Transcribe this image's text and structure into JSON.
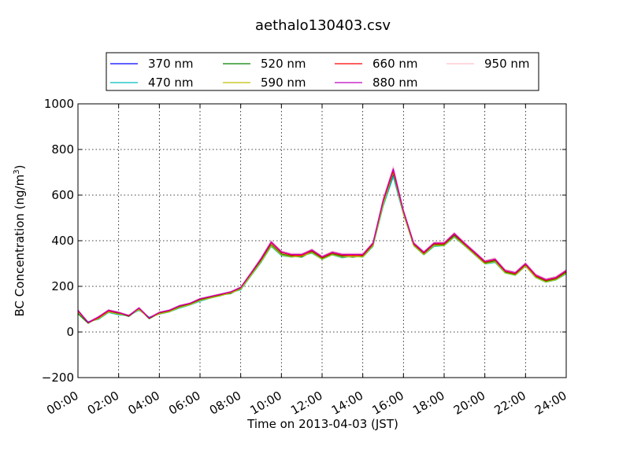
{
  "chart_data": {
    "type": "line",
    "title": "aethalo130403.csv",
    "xlabel": "Time on 2013-04-03 (JST)",
    "ylabel": "BC Concentration (ng/m",
    "ylabel_sup": "3",
    "ylabel_end": ")",
    "xlim": [
      0,
      24
    ],
    "ylim": [
      -200,
      1000
    ],
    "grid": true,
    "legend_position": "top",
    "x_ticks": [
      {
        "value": 0,
        "label": "00:00"
      },
      {
        "value": 2,
        "label": "02:00"
      },
      {
        "value": 4,
        "label": "04:00"
      },
      {
        "value": 6,
        "label": "06:00"
      },
      {
        "value": 8,
        "label": "08:00"
      },
      {
        "value": 10,
        "label": "10:00"
      },
      {
        "value": 12,
        "label": "12:00"
      },
      {
        "value": 14,
        "label": "14:00"
      },
      {
        "value": 16,
        "label": "16:00"
      },
      {
        "value": 18,
        "label": "18:00"
      },
      {
        "value": 20,
        "label": "20:00"
      },
      {
        "value": 22,
        "label": "22:00"
      },
      {
        "value": 24,
        "label": "24:00"
      }
    ],
    "y_ticks": [
      {
        "value": -200,
        "label": "−200"
      },
      {
        "value": 0,
        "label": "0"
      },
      {
        "value": 200,
        "label": "200"
      },
      {
        "value": 400,
        "label": "400"
      },
      {
        "value": 600,
        "label": "600"
      },
      {
        "value": 800,
        "label": "800"
      },
      {
        "value": 1000,
        "label": "1000"
      }
    ],
    "x": [
      0,
      0.5,
      1,
      1.5,
      2,
      2.5,
      3,
      3.5,
      4,
      4.5,
      5,
      5.5,
      6,
      6.5,
      7,
      7.5,
      8,
      8.5,
      9,
      9.5,
      10,
      10.5,
      11,
      11.5,
      12,
      12.5,
      13,
      13.5,
      14,
      14.5,
      15,
      15.5,
      16,
      16.5,
      17,
      17.5,
      18,
      18.5,
      19,
      19.5,
      20,
      20.5,
      21,
      21.5,
      22,
      22.5,
      23,
      23.5,
      24
    ],
    "series": [
      {
        "name": "370 nm",
        "color": "#0000ff",
        "values": [
          90,
          40,
          60,
          90,
          80,
          70,
          100,
          60,
          80,
          90,
          110,
          120,
          140,
          150,
          160,
          170,
          190,
          250,
          310,
          380,
          340,
          330,
          330,
          350,
          320,
          340,
          330,
          330,
          330,
          380,
          560,
          690,
          520,
          380,
          340,
          380,
          380,
          420,
          380,
          340,
          300,
          310,
          260,
          250,
          290,
          240,
          220,
          230,
          260
        ]
      },
      {
        "name": "470 nm",
        "color": "#00bfbf",
        "values": [
          85,
          45,
          55,
          85,
          75,
          72,
          95,
          65,
          78,
          88,
          105,
          118,
          135,
          148,
          158,
          172,
          185,
          245,
          305,
          375,
          335,
          328,
          335,
          345,
          318,
          338,
          325,
          332,
          328,
          375,
          550,
          680,
          515,
          378,
          338,
          375,
          378,
          415,
          378,
          338,
          298,
          305,
          258,
          248,
          288,
          238,
          218,
          228,
          255
        ]
      },
      {
        "name": "520 nm",
        "color": "#008000",
        "values": [
          80,
          38,
          65,
          95,
          82,
          68,
          102,
          58,
          82,
          92,
          112,
          122,
          142,
          152,
          162,
          168,
          192,
          252,
          312,
          382,
          342,
          332,
          328,
          352,
          322,
          342,
          332,
          328,
          332,
          382,
          565,
          695,
          525,
          382,
          342,
          382,
          382,
          425,
          382,
          342,
          302,
          312,
          262,
          252,
          292,
          242,
          222,
          232,
          262
        ]
      },
      {
        "name": "590 nm",
        "color": "#bfbf00",
        "values": [
          88,
          42,
          58,
          88,
          78,
          74,
          98,
          62,
          79,
          89,
          108,
          119,
          138,
          149,
          159,
          171,
          188,
          248,
          308,
          378,
          338,
          329,
          332,
          348,
          319,
          339,
          328,
          331,
          329,
          378,
          558,
          700,
          518,
          379,
          339,
          379,
          379,
          418,
          379,
          339,
          299,
          308,
          259,
          249,
          289,
          239,
          219,
          229,
          258
        ]
      },
      {
        "name": "660 nm",
        "color": "#ff0000",
        "values": [
          92,
          40,
          62,
          92,
          84,
          70,
          104,
          60,
          84,
          94,
          114,
          124,
          144,
          154,
          164,
          174,
          194,
          256,
          318,
          390,
          348,
          336,
          336,
          356,
          326,
          346,
          336,
          336,
          336,
          386,
          572,
          705,
          528,
          386,
          346,
          386,
          386,
          428,
          386,
          346,
          306,
          316,
          266,
          256,
          296,
          246,
          226,
          236,
          266
        ]
      },
      {
        "name": "880 nm",
        "color": "#bf00bf",
        "values": [
          95,
          42,
          66,
          96,
          86,
          72,
          106,
          62,
          86,
          96,
          116,
          126,
          146,
          156,
          166,
          176,
          196,
          258,
          322,
          395,
          352,
          340,
          340,
          360,
          330,
          350,
          340,
          340,
          340,
          390,
          578,
          715,
          532,
          390,
          350,
          390,
          390,
          432,
          390,
          350,
          310,
          320,
          270,
          260,
          300,
          250,
          230,
          240,
          270
        ]
      },
      {
        "name": "950 nm",
        "color": "#ffc0cb",
        "values": [
          98,
          44,
          68,
          98,
          88,
          74,
          108,
          64,
          88,
          98,
          118,
          128,
          148,
          158,
          168,
          178,
          198,
          262,
          326,
          400,
          356,
          344,
          344,
          364,
          334,
          354,
          344,
          344,
          344,
          394,
          584,
          725,
          536,
          394,
          354,
          394,
          394,
          436,
          394,
          354,
          314,
          324,
          274,
          264,
          304,
          254,
          234,
          244,
          274
        ]
      }
    ]
  }
}
